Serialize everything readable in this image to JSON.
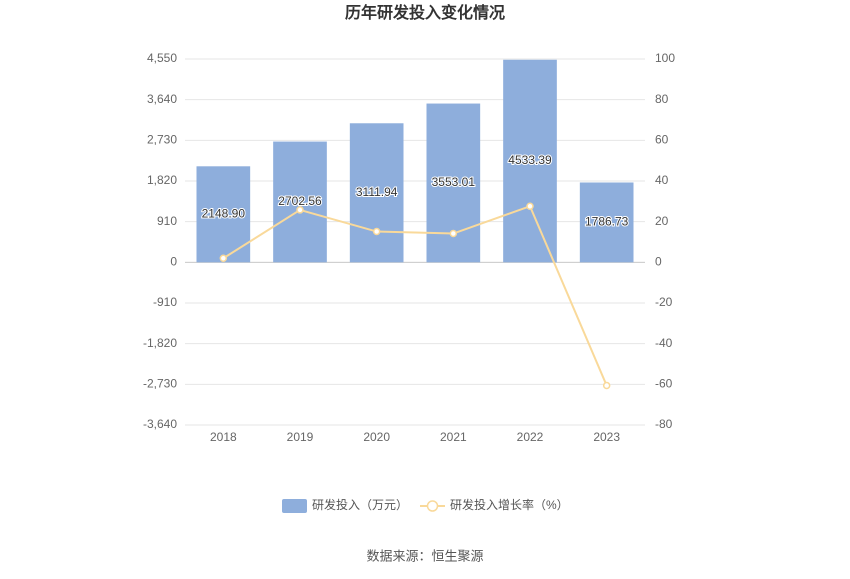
{
  "chart_data": {
    "type": "bar_line",
    "title": "历年研发投入变化情况",
    "categories": [
      "2018",
      "2019",
      "2020",
      "2021",
      "2022",
      "2023"
    ],
    "series": [
      {
        "name": "研发投入（万元）",
        "type": "bar",
        "color": "#8eaedc",
        "values": [
          2148.9,
          2702.56,
          3111.94,
          3553.01,
          4533.39,
          1786.73
        ],
        "value_labels": [
          "2148.90",
          "2702.56",
          "3111.94",
          "3553.01",
          "4533.39",
          "1786.73"
        ]
      },
      {
        "name": "研发投入增长率（%）",
        "type": "line",
        "axis": "y2",
        "color": "#f9d99a",
        "values": [
          2.0,
          25.77,
          15.15,
          14.17,
          27.59,
          -60.59
        ]
      }
    ],
    "ylim": [
      -3640,
      4550
    ],
    "yticks": [
      {
        "value": -3640,
        "label": "-3,640"
      },
      {
        "value": -2730,
        "label": "-2,730"
      },
      {
        "value": -1820,
        "label": "-1,820"
      },
      -910,
      0,
      910,
      {
        "value": 1820,
        "label": "1,820"
      },
      {
        "value": 2730,
        "label": "2,730"
      },
      {
        "value": 3640,
        "label": "3,640"
      },
      {
        "value": 4550,
        "label": "4,550"
      }
    ],
    "y2lim": [
      -80,
      100
    ],
    "y2ticks": [
      -80,
      -60,
      -40,
      -20,
      0,
      20,
      40,
      60,
      80,
      100
    ],
    "grid": true,
    "legend": "bottom",
    "source": "数据来源：恒生聚源"
  }
}
